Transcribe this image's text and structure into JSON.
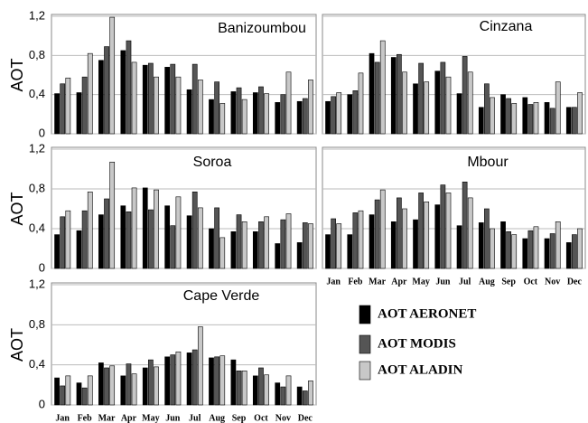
{
  "chart_data": [
    {
      "type": "bar",
      "title": "Banizoumbou",
      "ylabel": "AOT",
      "categories": [
        null,
        null,
        null,
        null,
        null,
        null,
        null,
        null,
        null,
        null,
        null,
        null
      ],
      "ylim": [
        0,
        1.2
      ],
      "yticks": [
        0,
        {
          "value": 0.4,
          "label": "0,4"
        },
        {
          "value": 0.8,
          "label": "0,8"
        },
        {
          "value": 1.2,
          "label": "1,2"
        }
      ],
      "ytick_labels": true,
      "grid": true,
      "series": [
        {
          "color": "#000000",
          "values": [
            0.41,
            0.42,
            0.75,
            0.85,
            0.7,
            0.68,
            0.45,
            0.35,
            0.43,
            0.42,
            0.32,
            0.33
          ]
        },
        {
          "color": "#555555",
          "values": [
            0.51,
            0.58,
            0.89,
            0.95,
            0.72,
            0.71,
            0.71,
            0.53,
            0.47,
            0.48,
            0.4,
            0.36
          ]
        },
        {
          "color": "#c8c8c8",
          "values": [
            0.57,
            0.82,
            1.19,
            0.73,
            0.58,
            0.58,
            0.55,
            0.31,
            0.35,
            0.41,
            0.63,
            0.55
          ]
        }
      ]
    },
    {
      "type": "bar",
      "title": "Cinzana",
      "categories": [
        null,
        null,
        null,
        null,
        null,
        null,
        null,
        null,
        null,
        null,
        null,
        null
      ],
      "ylim": [
        0,
        1.2
      ],
      "yticks": [
        0,
        0.4,
        0.8,
        1.2
      ],
      "ytick_labels": false,
      "grid": true,
      "series": [
        {
          "color": "#000000",
          "values": [
            0.33,
            0.4,
            0.82,
            0.78,
            0.51,
            0.64,
            0.41,
            0.27,
            0.4,
            0.37,
            0.32,
            0.27
          ]
        },
        {
          "color": "#555555",
          "values": [
            0.38,
            0.44,
            0.73,
            0.81,
            0.72,
            0.73,
            0.79,
            0.51,
            0.36,
            0.3,
            0.26,
            0.27
          ]
        },
        {
          "color": "#c8c8c8",
          "values": [
            0.42,
            0.62,
            0.95,
            0.63,
            0.53,
            0.58,
            0.63,
            0.37,
            0.31,
            0.32,
            0.53,
            0.42
          ]
        }
      ]
    },
    {
      "type": "bar",
      "title": "Soroa",
      "ylabel": "AOT",
      "categories": [
        null,
        null,
        null,
        null,
        null,
        null,
        null,
        null,
        null,
        null,
        null,
        null
      ],
      "ylim": [
        0,
        1.2
      ],
      "yticks": [
        0,
        {
          "value": 0.4,
          "label": "0,4"
        },
        {
          "value": 0.8,
          "label": "0,8"
        },
        {
          "value": 1.2,
          "label": "1,2"
        }
      ],
      "ytick_labels": true,
      "grid": true,
      "series": [
        {
          "color": "#000000",
          "values": [
            0.34,
            0.38,
            0.54,
            0.63,
            0.81,
            0.63,
            0.53,
            0.4,
            0.37,
            0.37,
            0.25,
            0.26
          ]
        },
        {
          "color": "#555555",
          "values": [
            0.52,
            0.58,
            0.7,
            0.57,
            0.59,
            0.43,
            0.77,
            0.61,
            0.54,
            0.47,
            0.49,
            0.46
          ]
        },
        {
          "color": "#c8c8c8",
          "values": [
            0.58,
            0.77,
            1.07,
            0.81,
            0.79,
            0.72,
            0.61,
            0.31,
            0.47,
            0.52,
            0.55,
            0.45
          ]
        }
      ]
    },
    {
      "type": "bar",
      "title": "Mbour",
      "categories": [
        "Jan",
        "Feb",
        "Mar",
        "Apr",
        "May",
        "Jun",
        "Jul",
        "Aug",
        "Sep",
        "Oct",
        "Nov",
        "Dec"
      ],
      "ylim": [
        0,
        1.2
      ],
      "yticks": [
        0,
        0.4,
        0.8,
        1.2
      ],
      "ytick_labels": false,
      "grid": true,
      "series": [
        {
          "color": "#000000",
          "values": [
            0.34,
            0.34,
            0.54,
            0.47,
            0.49,
            0.64,
            0.43,
            0.46,
            0.47,
            0.3,
            0.3,
            0.26
          ]
        },
        {
          "color": "#555555",
          "values": [
            0.5,
            0.56,
            0.69,
            0.71,
            0.76,
            0.84,
            0.87,
            0.6,
            0.37,
            0.38,
            0.35,
            0.34
          ]
        },
        {
          "color": "#c8c8c8",
          "values": [
            0.45,
            0.58,
            0.79,
            0.6,
            0.67,
            0.76,
            0.71,
            0.4,
            0.34,
            0.42,
            0.47,
            0.4
          ]
        }
      ]
    },
    {
      "type": "bar",
      "title": "Cape Verde",
      "ylabel": "AOT",
      "categories": [
        "Jan",
        "Feb",
        "Mar",
        "Apr",
        "May",
        "Jun",
        "Jul",
        "Aug",
        "Sep",
        "Oct",
        "Nov",
        "Dec"
      ],
      "ylim": [
        0,
        1.2
      ],
      "yticks": [
        0,
        {
          "value": 0.4,
          "label": "0,4"
        },
        {
          "value": 0.8,
          "label": "0,8"
        },
        {
          "value": 1.2,
          "label": "1,2"
        }
      ],
      "ytick_labels": true,
      "grid": true,
      "series": [
        {
          "color": "#000000",
          "values": [
            0.27,
            0.22,
            0.42,
            0.29,
            0.37,
            0.48,
            0.52,
            0.47,
            0.45,
            0.29,
            0.22,
            0.18
          ]
        },
        {
          "color": "#555555",
          "values": [
            0.19,
            0.17,
            0.37,
            0.41,
            0.45,
            0.5,
            0.55,
            0.48,
            0.34,
            0.37,
            0.18,
            0.14
          ]
        },
        {
          "color": "#c8c8c8",
          "values": [
            0.29,
            0.29,
            0.39,
            0.31,
            0.38,
            0.53,
            0.78,
            0.49,
            0.34,
            0.3,
            0.29,
            0.24
          ]
        }
      ]
    }
  ],
  "legend": [
    {
      "name": "AOT AERONET",
      "color": "#000000"
    },
    {
      "name": "AOT MODIS",
      "color": "#555555"
    },
    {
      "name": "AOT ALADIN",
      "color": "#c8c8c8"
    }
  ]
}
